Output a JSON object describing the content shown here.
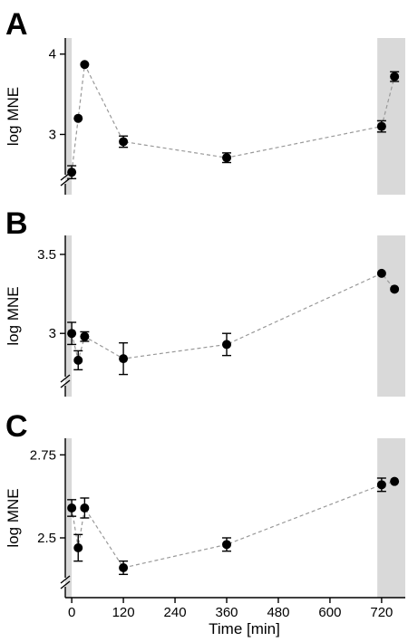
{
  "chart_data": [
    {
      "type": "scatter",
      "panel_label": "A",
      "ylabel": "log MNE",
      "yticks": [
        3,
        4
      ],
      "ylim": [
        2.25,
        4.2
      ],
      "axis_break": true,
      "shaded_x_ranges": [
        [
          -15,
          0
        ],
        [
          710,
          775
        ]
      ],
      "series": [
        {
          "x": [
            0,
            15,
            30,
            120,
            360,
            720,
            750
          ],
          "y": [
            2.53,
            3.2,
            3.87,
            2.91,
            2.71,
            3.1,
            3.72
          ],
          "err": [
            0.08,
            0.0,
            0.0,
            0.07,
            0.06,
            0.07,
            0.06
          ]
        }
      ]
    },
    {
      "type": "scatter",
      "panel_label": "B",
      "ylabel": "log MNE",
      "yticks": [
        3,
        3.5
      ],
      "ylim": [
        2.6,
        3.62
      ],
      "axis_break": true,
      "shaded_x_ranges": [
        [
          -15,
          0
        ],
        [
          710,
          775
        ]
      ],
      "series": [
        {
          "x": [
            0,
            15,
            30,
            120,
            360,
            720,
            750
          ],
          "y": [
            3.0,
            2.83,
            2.98,
            2.84,
            2.93,
            3.38,
            3.28
          ],
          "err": [
            0.07,
            0.06,
            0.03,
            0.1,
            0.07,
            0.0,
            0.0
          ]
        }
      ]
    },
    {
      "type": "scatter",
      "panel_label": "C",
      "ylabel": "log MNE",
      "yticks": [
        2.5,
        2.75
      ],
      "ylim": [
        2.32,
        2.8
      ],
      "axis_break": true,
      "shaded_x_ranges": [
        [
          -15,
          0
        ],
        [
          710,
          775
        ]
      ],
      "xlabel": "Time [min]",
      "xticks": [
        0,
        120,
        240,
        360,
        480,
        600,
        720
      ],
      "xlim": [
        -15,
        775
      ],
      "series": [
        {
          "x": [
            0,
            15,
            30,
            120,
            360,
            720,
            750
          ],
          "y": [
            2.59,
            2.47,
            2.59,
            2.41,
            2.48,
            2.66,
            2.67
          ],
          "err": [
            0.025,
            0.04,
            0.03,
            0.02,
            0.02,
            0.02,
            0.0
          ]
        }
      ]
    }
  ]
}
